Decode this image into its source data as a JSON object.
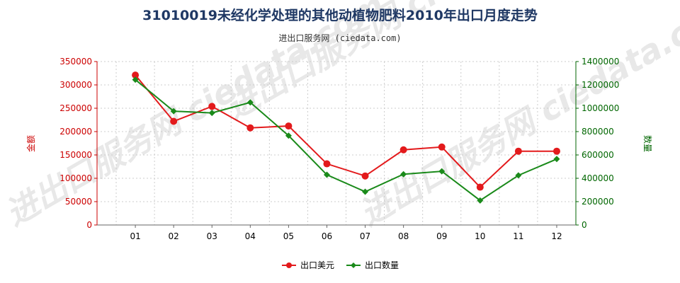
{
  "chart_data": {
    "type": "line",
    "title": "31010019未经化学处理的其他动植物肥料2010年出口月度走势",
    "subtitle": "进出口服务网 (ciedata.com)",
    "watermark": "进出口服务网 ciedata.com",
    "categories": [
      "01",
      "02",
      "03",
      "04",
      "05",
      "06",
      "07",
      "08",
      "09",
      "10",
      "11",
      "12"
    ],
    "y_left": {
      "label": "金额",
      "ylim": [
        0,
        350000
      ],
      "ticks": [
        0,
        50000,
        100000,
        150000,
        200000,
        250000,
        300000,
        350000
      ],
      "tick_labels": [
        "0",
        "50000",
        "100000",
        "150000",
        "200000",
        "250000",
        "300000",
        "350000"
      ]
    },
    "y_right": {
      "label": "数量",
      "ylim": [
        0,
        1400000
      ],
      "ticks": [
        0,
        200000,
        400000,
        600000,
        800000,
        1000000,
        1200000,
        1400000
      ],
      "tick_labels": [
        "0",
        "200000",
        "400000",
        "600000",
        "800000",
        "1000000",
        "1200000",
        "1400000"
      ]
    },
    "grid": true,
    "legend_position": "bottom-center",
    "series": [
      {
        "name": "出口美元",
        "axis": "left",
        "color": "#e31a1c",
        "values": [
          321000,
          222000,
          254000,
          208000,
          212000,
          131000,
          105000,
          161000,
          167000,
          81000,
          158000,
          158000
        ]
      },
      {
        "name": "出口数量",
        "axis": "right",
        "color": "#1a8a1a",
        "values": [
          1245000,
          975000,
          960000,
          1050000,
          765000,
          430000,
          285000,
          435000,
          460000,
          210000,
          425000,
          565000
        ]
      }
    ]
  }
}
